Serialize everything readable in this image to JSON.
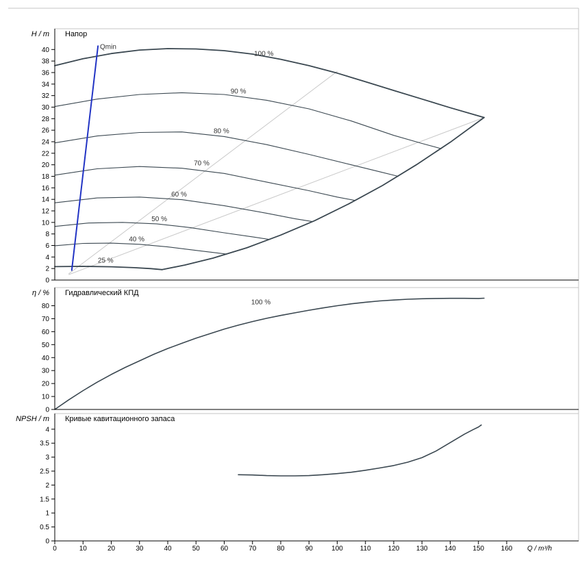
{
  "meta": {
    "bg": "#ffffff",
    "frame_color": "#c4c4c4",
    "axis_color": "#000000",
    "text_color": "#000000",
    "curve_color": "#3a4750",
    "iso_color": "#c9c9c9",
    "qmin_color": "#2133c4",
    "label_color": "#333333"
  },
  "chart_data": {
    "type": "line",
    "x_axis": {
      "label": "Q / m³/h",
      "min": 0,
      "max": 185,
      "ticks": [
        0,
        10,
        20,
        30,
        40,
        50,
        60,
        70,
        80,
        90,
        100,
        110,
        120,
        130,
        140,
        150,
        160
      ]
    },
    "panels": [
      {
        "id": "head",
        "header": "Напор",
        "y_label": "H / m",
        "y_min": 0,
        "y_max": 43.6,
        "y_ticks": [
          0,
          2,
          4,
          6,
          8,
          10,
          12,
          14,
          16,
          18,
          20,
          22,
          24,
          26,
          28,
          30,
          32,
          34,
          36,
          38,
          40
        ],
        "series": [
          {
            "name": "iso-guide-1",
            "color": "#c9c9c9",
            "width": 1,
            "points": [
              [
                5,
                1.1
              ],
              [
                100,
                36.2
              ]
            ]
          },
          {
            "name": "iso-guide-2",
            "color": "#c9c9c9",
            "width": 1,
            "points": [
              [
                5,
                0.95
              ],
              [
                152,
                28.2
              ]
            ]
          },
          {
            "name": "speed-90",
            "color": "#3a4750",
            "width": 1.1,
            "points": [
              [
                0,
                30.1
              ],
              [
                15,
                31.4
              ],
              [
                30,
                32.2
              ],
              [
                45,
                32.5
              ],
              [
                60,
                32.2
              ],
              [
                75,
                31.2
              ],
              [
                90,
                29.7
              ],
              [
                105,
                27.6
              ],
              [
                120,
                25.1
              ],
              [
                130,
                23.7
              ],
              [
                136.8,
                22.8
              ]
            ]
          },
          {
            "name": "speed-80",
            "color": "#3a4750",
            "width": 1.1,
            "points": [
              [
                0,
                23.8
              ],
              [
                15,
                25.0
              ],
              [
                30,
                25.6
              ],
              [
                45,
                25.7
              ],
              [
                60,
                24.9
              ],
              [
                75,
                23.5
              ],
              [
                90,
                21.8
              ],
              [
                105,
                20.0
              ],
              [
                115,
                18.8
              ],
              [
                121.6,
                18.0
              ]
            ]
          },
          {
            "name": "speed-70",
            "color": "#3a4750",
            "width": 1.1,
            "points": [
              [
                0,
                18.2
              ],
              [
                15,
                19.3
              ],
              [
                30,
                19.7
              ],
              [
                45,
                19.4
              ],
              [
                60,
                18.5
              ],
              [
                75,
                17.0
              ],
              [
                90,
                15.5
              ],
              [
                100,
                14.4
              ],
              [
                106.4,
                13.8
              ]
            ]
          },
          {
            "name": "speed-60",
            "color": "#3a4750",
            "width": 1.1,
            "points": [
              [
                0,
                13.4
              ],
              [
                15,
                14.25
              ],
              [
                30,
                14.4
              ],
              [
                45,
                13.95
              ],
              [
                60,
                12.9
              ],
              [
                75,
                11.6
              ],
              [
                85,
                10.65
              ],
              [
                91.2,
                10.15
              ]
            ]
          },
          {
            "name": "speed-50",
            "color": "#3a4750",
            "width": 1.1,
            "points": [
              [
                0,
                9.3
              ],
              [
                12,
                9.9
              ],
              [
                24,
                10.0
              ],
              [
                36,
                9.75
              ],
              [
                48,
                9.1
              ],
              [
                60,
                8.2
              ],
              [
                70,
                7.5
              ],
              [
                76,
                7.05
              ]
            ]
          },
          {
            "name": "speed-40",
            "color": "#3a4750",
            "width": 1.1,
            "points": [
              [
                0,
                5.95
              ],
              [
                10,
                6.35
              ],
              [
                20,
                6.4
              ],
              [
                30,
                6.2
              ],
              [
                40,
                5.75
              ],
              [
                50,
                5.15
              ],
              [
                60.8,
                4.5
              ]
            ]
          },
          {
            "name": "speed-100",
            "color": "#3a4750",
            "width": 1.8,
            "points": [
              [
                0,
                37.2
              ],
              [
                10,
                38.4
              ],
              [
                20,
                39.3
              ],
              [
                30,
                39.9
              ],
              [
                40,
                40.15
              ],
              [
                50,
                40.1
              ],
              [
                60,
                39.8
              ],
              [
                70,
                39.2
              ],
              [
                80,
                38.3
              ],
              [
                90,
                37.2
              ],
              [
                100,
                35.9
              ],
              [
                110,
                34.4
              ],
              [
                120,
                32.9
              ],
              [
                130,
                31.4
              ],
              [
                140,
                29.9
              ],
              [
                152,
                28.2
              ]
            ]
          },
          {
            "name": "max-flow-envelope",
            "color": "#3a4750",
            "width": 1.8,
            "points": [
              [
                152,
                28.2
              ],
              [
                140,
                23.9
              ],
              [
                128,
                20.0
              ],
              [
                116,
                16.4
              ],
              [
                104,
                13.2
              ],
              [
                92,
                10.3
              ],
              [
                80,
                7.8
              ],
              [
                68,
                5.6
              ],
              [
                56,
                3.8
              ],
              [
                46,
                2.6
              ],
              [
                38,
                1.8
              ]
            ]
          },
          {
            "name": "speed-25",
            "color": "#3a4750",
            "width": 1.8,
            "points": [
              [
                0,
                2.33
              ],
              [
                10,
                2.38
              ],
              [
                20,
                2.3
              ],
              [
                28,
                2.15
              ],
              [
                34,
                1.98
              ],
              [
                38,
                1.8
              ]
            ]
          },
          {
            "name": "qmin-line",
            "color": "#2133c4",
            "width": 2,
            "points": [
              [
                6,
                1.7
              ],
              [
                15.3,
                40.6
              ]
            ]
          }
        ],
        "labels": [
          {
            "text": "Qmin",
            "q": 16,
            "v": 40.1,
            "anchor": "start"
          },
          {
            "text": "100 %",
            "q": 74,
            "v": 38.9
          },
          {
            "text": "90 %",
            "q": 65,
            "v": 32.4
          },
          {
            "text": "80 %",
            "q": 59,
            "v": 25.5
          },
          {
            "text": "70 %",
            "q": 52,
            "v": 19.9
          },
          {
            "text": "60 %",
            "q": 44,
            "v": 14.5
          },
          {
            "text": "50 %",
            "q": 37,
            "v": 10.2
          },
          {
            "text": "40 %",
            "q": 29,
            "v": 6.7
          },
          {
            "text": "25 %",
            "q": 18,
            "v": 3.0
          }
        ]
      },
      {
        "id": "efficiency",
        "header": "Гидравлический КПД",
        "y_label": "η / %",
        "y_min": 0,
        "y_max": 94,
        "y_ticks": [
          0,
          10,
          20,
          30,
          40,
          50,
          60,
          70,
          80
        ],
        "series": [
          {
            "name": "efficiency-100",
            "color": "#3a4750",
            "width": 1.6,
            "points": [
              [
                0,
                0
              ],
              [
                5,
                7.5
              ],
              [
                10,
                14.5
              ],
              [
                15,
                21
              ],
              [
                20,
                27
              ],
              [
                25,
                32.5
              ],
              [
                30,
                37.5
              ],
              [
                35,
                42.5
              ],
              [
                40,
                47
              ],
              [
                45,
                51
              ],
              [
                50,
                55
              ],
              [
                55,
                58.5
              ],
              [
                60,
                62
              ],
              [
                65,
                65
              ],
              [
                70,
                67.8
              ],
              [
                75,
                70.3
              ],
              [
                80,
                72.5
              ],
              [
                85,
                74.5
              ],
              [
                90,
                76.5
              ],
              [
                95,
                78.3
              ],
              [
                100,
                80
              ],
              [
                105,
                81.5
              ],
              [
                110,
                82.7
              ],
              [
                115,
                83.7
              ],
              [
                120,
                84.4
              ],
              [
                125,
                85
              ],
              [
                130,
                85.4
              ],
              [
                135,
                85.6
              ],
              [
                140,
                85.7
              ],
              [
                145,
                85.7
              ],
              [
                150,
                85.6
              ],
              [
                152,
                85.8
              ]
            ]
          }
        ],
        "labels": [
          {
            "text": "100 %",
            "q": 73,
            "v": 81
          }
        ]
      },
      {
        "id": "npsh",
        "header": "Кривые кавитационного запаса",
        "y_label": "NPSH / m",
        "y_min": 0,
        "y_max": 4.56,
        "y_ticks": [
          0,
          0.5,
          1,
          1.5,
          2,
          2.5,
          3,
          3.5,
          4
        ],
        "series": [
          {
            "name": "npsh-curve",
            "color": "#3a4750",
            "width": 1.6,
            "points": [
              [
                65,
                2.37
              ],
              [
                70,
                2.36
              ],
              [
                75,
                2.34
              ],
              [
                80,
                2.33
              ],
              [
                85,
                2.33
              ],
              [
                90,
                2.34
              ],
              [
                95,
                2.37
              ],
              [
                100,
                2.41
              ],
              [
                105,
                2.46
              ],
              [
                110,
                2.53
              ],
              [
                115,
                2.61
              ],
              [
                120,
                2.7
              ],
              [
                125,
                2.82
              ],
              [
                130,
                2.98
              ],
              [
                135,
                3.22
              ],
              [
                140,
                3.52
              ],
              [
                145,
                3.82
              ],
              [
                148,
                3.98
              ],
              [
                150,
                4.08
              ],
              [
                151,
                4.15
              ]
            ]
          }
        ],
        "labels": []
      }
    ]
  }
}
